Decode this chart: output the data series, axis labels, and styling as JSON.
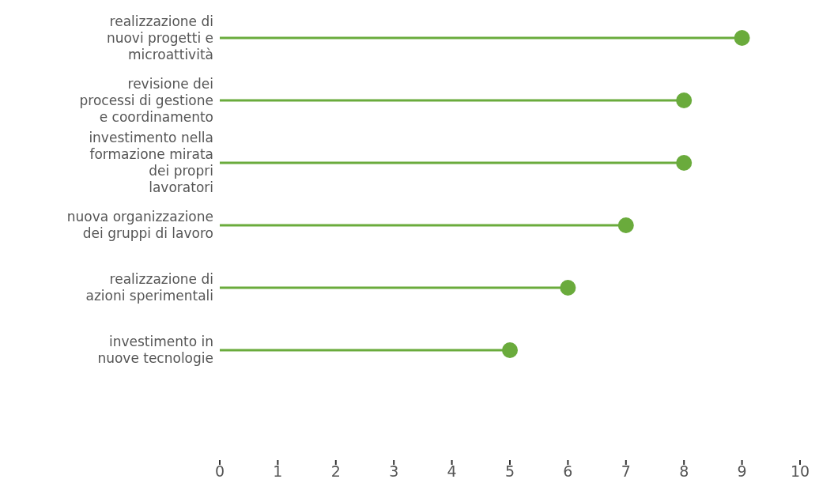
{
  "chart_data": {
    "type": "lollipop",
    "orientation": "horizontal",
    "categories": [
      "realizzazione di nuovi progetti e microattività",
      "revisione dei processi di gestione e coordinamento",
      "investimento nella formazione mirata dei propri lavoratori",
      "nuova organizzazione dei gruppi di lavoro",
      "realizzazione di azioni sperimentali",
      "investimento in nuove tecnologie"
    ],
    "values": [
      9,
      8,
      8,
      7,
      6,
      5
    ],
    "color": "#6aab3c",
    "marker": "circle",
    "xlim": [
      0,
      10
    ],
    "xticks": [
      0,
      1,
      2,
      3,
      4,
      5,
      6,
      7,
      8,
      9,
      10
    ],
    "grid": false
  }
}
